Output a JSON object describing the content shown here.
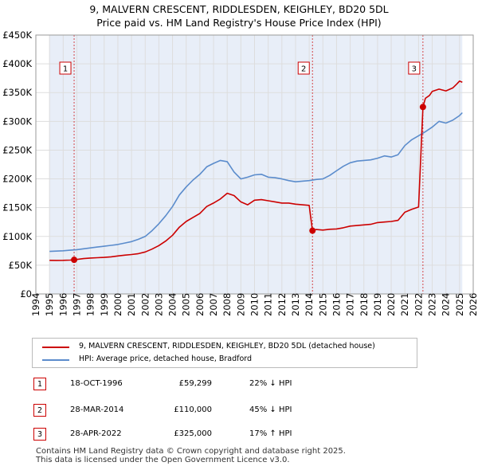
{
  "title_line1": "9, MALVERN CRESCENT, RIDDLESDEN, KEIGHLEY, BD20 5DL",
  "title_line2": "Price paid vs. HM Land Registry's House Price Index (HPI)",
  "colors": {
    "red": "#cc0000",
    "blue": "#5b8ccc",
    "shade": "#e8eef8",
    "grid": "#dddddd"
  },
  "chart_data": {
    "type": "line",
    "xlim": [
      1994,
      2026
    ],
    "ylim": [
      0,
      450000
    ],
    "y_ticks": [
      0,
      50000,
      100000,
      150000,
      200000,
      250000,
      300000,
      350000,
      400000,
      450000
    ],
    "y_tick_labels": [
      "£0",
      "£50K",
      "£100K",
      "£150K",
      "£200K",
      "£250K",
      "£300K",
      "£350K",
      "£400K",
      "£450K"
    ],
    "x_ticks": [
      1994,
      1995,
      1996,
      1997,
      1998,
      1999,
      2000,
      2001,
      2002,
      2003,
      2004,
      2005,
      2006,
      2007,
      2008,
      2009,
      2010,
      2011,
      2012,
      2013,
      2014,
      2015,
      2016,
      2017,
      2018,
      2019,
      2020,
      2021,
      2022,
      2023,
      2024,
      2025,
      2026
    ],
    "x_tick_labels": [
      "1994",
      "1995",
      "1996",
      "1997",
      "1998",
      "1999",
      "2000",
      "2001",
      "2002",
      "2003",
      "2004",
      "2005",
      "2006",
      "2007",
      "2008",
      "2009",
      "2010",
      "2011",
      "2012",
      "2013",
      "2014",
      "2015",
      "2016",
      "2017",
      "2018",
      "2019",
      "2020",
      "2021",
      "2022",
      "2023",
      "2024",
      "2025",
      "2026"
    ],
    "data_range": [
      1995,
      2025.2
    ],
    "series": [
      {
        "name": "9, MALVERN CRESCENT, RIDDLESDEN, KEIGHLEY, BD20 5DL (detached house)",
        "color": "#cc0000",
        "x": [
          1995.0,
          1995.5,
          1996.0,
          1996.5,
          1996.8,
          1997.0,
          1997.5,
          1998.0,
          1998.5,
          1999.0,
          1999.5,
          2000.0,
          2000.5,
          2001.0,
          2001.5,
          2002.0,
          2002.5,
          2003.0,
          2003.5,
          2004.0,
          2004.5,
          2005.0,
          2005.5,
          2006.0,
          2006.5,
          2007.0,
          2007.5,
          2008.0,
          2008.5,
          2009.0,
          2009.5,
          2010.0,
          2010.5,
          2011.0,
          2011.5,
          2012.0,
          2012.5,
          2013.0,
          2013.5,
          2014.0,
          2014.24,
          2014.5,
          2015.0,
          2015.5,
          2016.0,
          2016.5,
          2017.0,
          2017.5,
          2018.0,
          2018.5,
          2019.0,
          2019.5,
          2020.0,
          2020.5,
          2021.0,
          2021.5,
          2022.0,
          2022.32,
          2022.5,
          2022.8,
          2023.0,
          2023.5,
          2024.0,
          2024.5,
          2024.8,
          2025.0,
          2025.2
        ],
        "y": [
          58500,
          58300,
          58400,
          58900,
          59299,
          60000,
          61500,
          62500,
          63000,
          63500,
          64500,
          66000,
          67500,
          68500,
          70000,
          73000,
          78000,
          84000,
          92000,
          102000,
          116000,
          126000,
          133000,
          140000,
          152000,
          158000,
          165000,
          175000,
          171000,
          160000,
          155000,
          163000,
          164000,
          162000,
          160000,
          158000,
          158000,
          156000,
          155000,
          154000,
          110000,
          112000,
          111000,
          112500,
          113000,
          115000,
          118000,
          119000,
          120000,
          121000,
          124000,
          125000,
          126000,
          128000,
          142000,
          147000,
          151000,
          325000,
          340000,
          345000,
          352000,
          356000,
          353000,
          358000,
          365000,
          370000,
          368000
        ]
      },
      {
        "name": "HPI: Average price, detached house, Bradford",
        "color": "#5b8ccc",
        "x": [
          1995.0,
          1995.5,
          1996.0,
          1996.5,
          1997.0,
          1997.5,
          1998.0,
          1998.5,
          1999.0,
          1999.5,
          2000.0,
          2000.5,
          2001.0,
          2001.5,
          2002.0,
          2002.5,
          2003.0,
          2003.5,
          2004.0,
          2004.5,
          2005.0,
          2005.5,
          2006.0,
          2006.5,
          2007.0,
          2007.5,
          2008.0,
          2008.5,
          2009.0,
          2009.5,
          2010.0,
          2010.5,
          2011.0,
          2011.5,
          2012.0,
          2012.5,
          2013.0,
          2013.5,
          2014.0,
          2014.5,
          2015.0,
          2015.5,
          2016.0,
          2016.5,
          2017.0,
          2017.5,
          2018.0,
          2018.5,
          2019.0,
          2019.5,
          2020.0,
          2020.5,
          2021.0,
          2021.5,
          2022.0,
          2022.5,
          2023.0,
          2023.5,
          2024.0,
          2024.5,
          2025.0,
          2025.2
        ],
        "y": [
          74000,
          74500,
          75000,
          76000,
          77000,
          78500,
          80000,
          81500,
          83000,
          84500,
          86000,
          88500,
          91000,
          95000,
          100000,
          110000,
          122000,
          136000,
          152000,
          172000,
          186000,
          198000,
          208000,
          221000,
          227000,
          232000,
          230000,
          212000,
          200000,
          203000,
          207000,
          208000,
          203000,
          202000,
          200000,
          197000,
          195000,
          196000,
          197000,
          199000,
          200000,
          206000,
          214000,
          222000,
          228000,
          231000,
          232000,
          233000,
          236000,
          240000,
          238000,
          242000,
          258000,
          268000,
          275000,
          282000,
          290000,
          300000,
          297000,
          302000,
          310000,
          315000
        ]
      }
    ],
    "sales": [
      {
        "label": "1",
        "x": 1996.8,
        "y": 59299
      },
      {
        "label": "2",
        "x": 2014.24,
        "y": 110000
      },
      {
        "label": "3",
        "x": 2022.32,
        "y": 325000
      }
    ]
  },
  "legend": {
    "red_label": "9, MALVERN CRESCENT, RIDDLESDEN, KEIGHLEY, BD20 5DL (detached house)",
    "blue_label": "HPI: Average price, detached house, Bradford"
  },
  "transactions": [
    {
      "num": "1",
      "date": "18-OCT-1996",
      "price": "£59,299",
      "hpi": "22% ↓ HPI"
    },
    {
      "num": "2",
      "date": "28-MAR-2014",
      "price": "£110,000",
      "hpi": "45% ↓ HPI"
    },
    {
      "num": "3",
      "date": "28-APR-2022",
      "price": "£325,000",
      "hpi": "17% ↑ HPI"
    }
  ],
  "footer": {
    "line1": "Contains HM Land Registry data © Crown copyright and database right 2025.",
    "line2": "This data is licensed under the Open Government Licence v3.0."
  }
}
